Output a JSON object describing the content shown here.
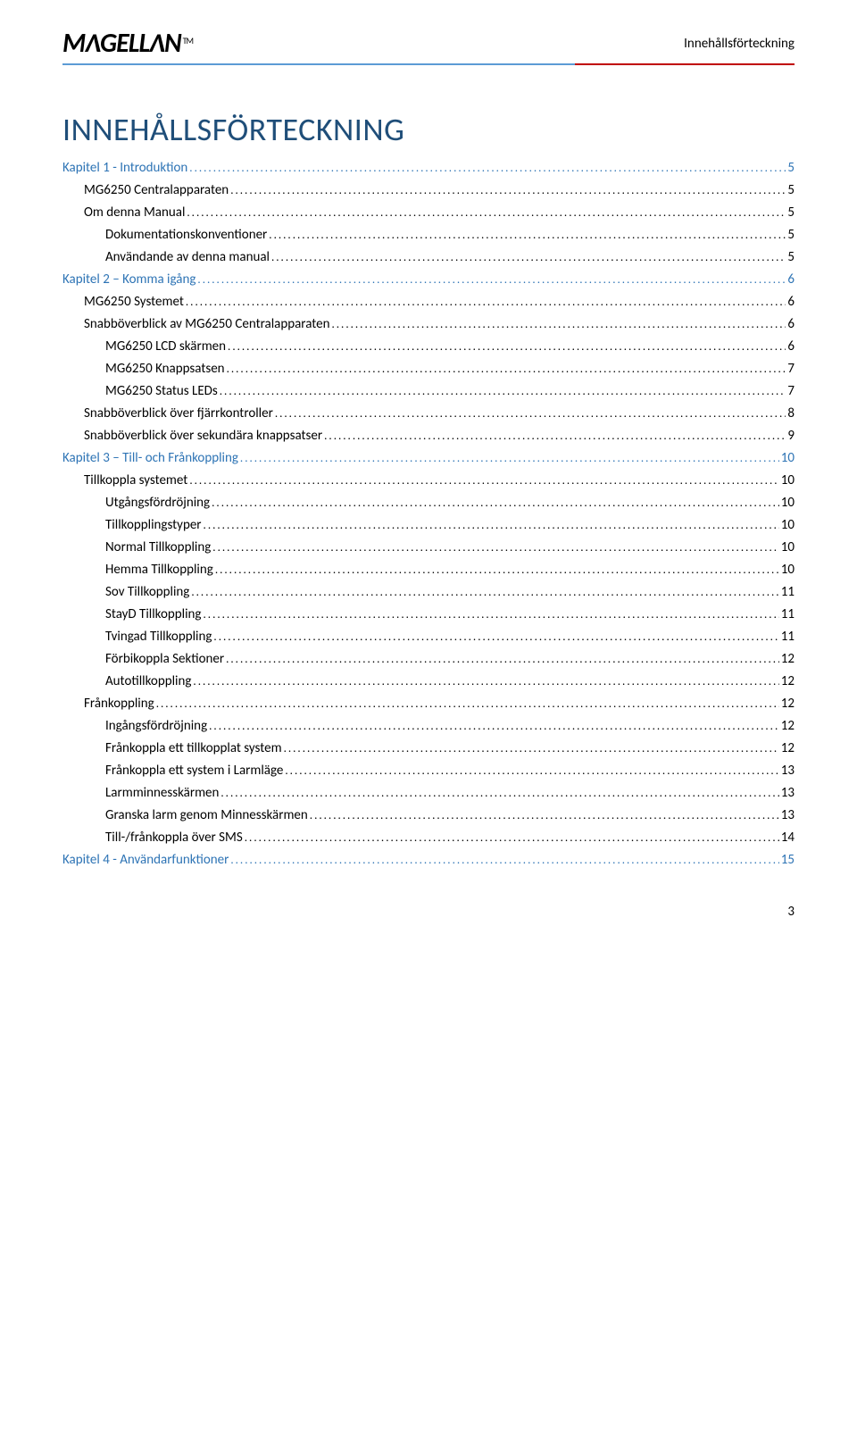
{
  "header": {
    "logo_text": "MΛGELLΛN",
    "logo_tm": "TM",
    "section_label": "Innehållsförteckning"
  },
  "title": "INNEHÅLLSFÖRTECKNING",
  "toc": [
    {
      "label": "Kapitel 1 - Introduktion",
      "page": "5",
      "depth": 0,
      "chapter": true
    },
    {
      "label": "MG6250 Centralapparaten",
      "page": "5",
      "depth": 1,
      "chapter": false
    },
    {
      "label": "Om denna Manual",
      "page": "5",
      "depth": 1,
      "chapter": false
    },
    {
      "label": "Dokumentationskonventioner",
      "page": "5",
      "depth": 2,
      "chapter": false
    },
    {
      "label": "Användande av denna manual",
      "page": "5",
      "depth": 2,
      "chapter": false
    },
    {
      "label": "Kapitel 2 – Komma igång",
      "page": "6",
      "depth": 0,
      "chapter": true
    },
    {
      "label": "MG6250 Systemet",
      "page": "6",
      "depth": 1,
      "chapter": false
    },
    {
      "label": "Snabböverblick av MG6250 Centralapparaten",
      "page": "6",
      "depth": 1,
      "chapter": false
    },
    {
      "label": "MG6250 LCD skärmen",
      "page": "6",
      "depth": 2,
      "chapter": false
    },
    {
      "label": "MG6250 Knappsatsen",
      "page": "7",
      "depth": 2,
      "chapter": false
    },
    {
      "label": "MG6250 Status LEDs",
      "page": "7",
      "depth": 2,
      "chapter": false
    },
    {
      "label": "Snabböverblick över fjärrkontroller",
      "page": "8",
      "depth": 1,
      "chapter": false
    },
    {
      "label": "Snabböverblick över sekundära knappsatser",
      "page": "9",
      "depth": 1,
      "chapter": false
    },
    {
      "label": "Kapitel 3 – Till- och Frånkoppling",
      "page": "10",
      "depth": 0,
      "chapter": true
    },
    {
      "label": "Tillkoppla systemet",
      "page": "10",
      "depth": 1,
      "chapter": false
    },
    {
      "label": "Utgångsfördröjning",
      "page": "10",
      "depth": 2,
      "chapter": false
    },
    {
      "label": "Tillkopplingstyper",
      "page": "10",
      "depth": 2,
      "chapter": false
    },
    {
      "label": "Normal Tillkoppling",
      "page": "10",
      "depth": 2,
      "chapter": false
    },
    {
      "label": "Hemma Tillkoppling",
      "page": "10",
      "depth": 2,
      "chapter": false
    },
    {
      "label": "Sov Tillkoppling",
      "page": "11",
      "depth": 2,
      "chapter": false
    },
    {
      "label": "StayD Tillkoppling",
      "page": "11",
      "depth": 2,
      "chapter": false
    },
    {
      "label": "Tvingad Tillkoppling",
      "page": "11",
      "depth": 2,
      "chapter": false
    },
    {
      "label": "Förbikoppla Sektioner",
      "page": "12",
      "depth": 2,
      "chapter": false
    },
    {
      "label": "Autotillkoppling",
      "page": "12",
      "depth": 2,
      "chapter": false
    },
    {
      "label": "Frånkoppling",
      "page": "12",
      "depth": 1,
      "chapter": false
    },
    {
      "label": "Ingångsfördröjning",
      "page": "12",
      "depth": 2,
      "chapter": false
    },
    {
      "label": "Frånkoppla ett tillkopplat system",
      "page": "12",
      "depth": 2,
      "chapter": false
    },
    {
      "label": "Frånkoppla ett system i Larmläge",
      "page": "13",
      "depth": 2,
      "chapter": false
    },
    {
      "label": "Larmminnesskärmen",
      "page": "13",
      "depth": 2,
      "chapter": false
    },
    {
      "label": "Granska larm genom Minnesskärmen",
      "page": "13",
      "depth": 2,
      "chapter": false
    },
    {
      "label": "Till-/frånkoppla över SMS",
      "page": "14",
      "depth": 2,
      "chapter": false
    },
    {
      "label": "Kapitel 4 - Användarfunktioner",
      "page": "15",
      "depth": 0,
      "chapter": true
    }
  ],
  "page_number": "3",
  "colors": {
    "title_color": "#1f4e79",
    "chapter_color": "#2e74b5",
    "body_color": "#000000",
    "line_blue": "#5b9bd5",
    "line_red": "#c00000"
  }
}
